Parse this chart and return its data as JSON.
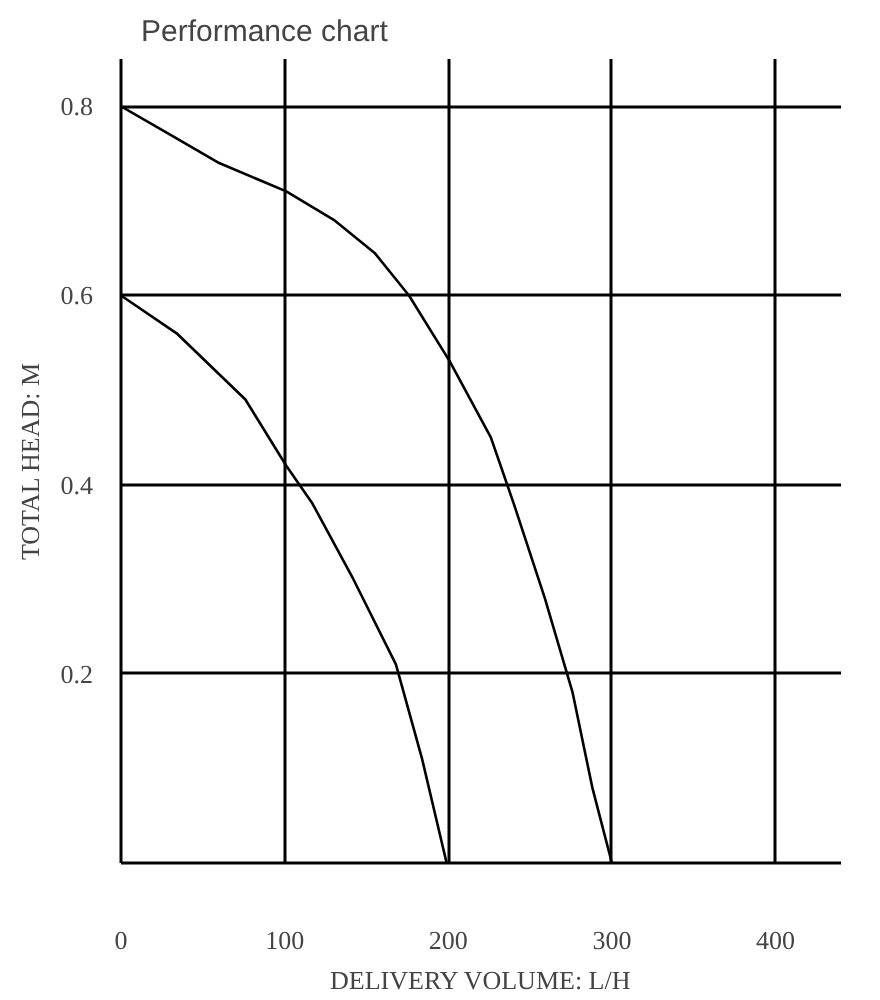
{
  "chart_data": {
    "type": "line",
    "title": "Performance chart",
    "xlabel": "DELIVERY VOLUME: L/H",
    "ylabel": "TOTAL HEAD: M",
    "xlim": [
      0,
      440
    ],
    "ylim": [
      0,
      0.85
    ],
    "xticks": [
      0,
      100,
      200,
      300,
      400
    ],
    "yticks": [
      0.2,
      0.4,
      0.6,
      0.8
    ],
    "grid": true,
    "marker": "none",
    "line_style": "solid",
    "series": [
      {
        "color": "#000000",
        "x": [
          0,
          30,
          60,
          101,
          130,
          155,
          176,
          201,
          226,
          240,
          259,
          276,
          288,
          300
        ],
        "values": [
          0.8,
          0.77,
          0.74,
          0.71,
          0.68,
          0.645,
          0.6,
          0.53,
          0.45,
          0.38,
          0.28,
          0.18,
          0.08,
          0
        ]
      },
      {
        "color": "#000000",
        "x": [
          0,
          34,
          76,
          101,
          117,
          142,
          168,
          184,
          199
        ],
        "values": [
          0.6,
          0.56,
          0.49,
          0.42,
          0.38,
          0.3,
          0.21,
          0.11,
          0
        ]
      }
    ]
  }
}
